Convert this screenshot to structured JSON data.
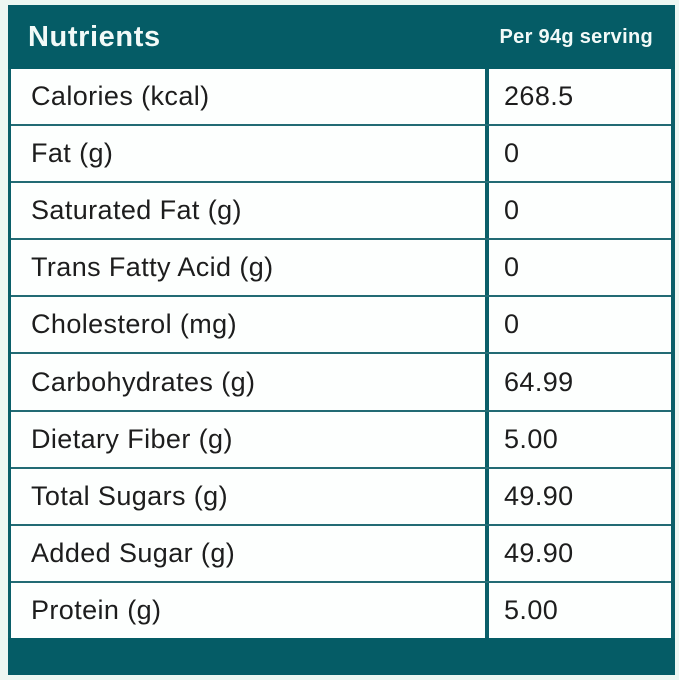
{
  "header": {
    "title": "Nutrients",
    "serving_label": "Per 94g serving"
  },
  "table": {
    "columns": [
      "Nutrients",
      "Per 94g serving"
    ],
    "rows": [
      {
        "label": "Calories (kcal)",
        "value": "268.5"
      },
      {
        "label": "Fat (g)",
        "value": "0"
      },
      {
        "label": "Saturated Fat (g)",
        "value": "0"
      },
      {
        "label": "Trans Fatty Acid (g)",
        "value": "0"
      },
      {
        "label": "Cholesterol (mg)",
        "value": "0"
      },
      {
        "label": "Carbohydrates (g)",
        "value": "64.99"
      },
      {
        "label": "Dietary Fiber (g)",
        "value": "5.00"
      },
      {
        "label": "Total Sugars (g)",
        "value": "49.90"
      },
      {
        "label": "Added Sugar (g)",
        "value": "49.90"
      },
      {
        "label": "Protein (g)",
        "value": "5.00"
      }
    ]
  },
  "colors": {
    "teal": "#055c66",
    "border_teal": "#0a5f69",
    "row_line": "#226b74",
    "row_bg": "#fdfffe",
    "page_bg": "#edf7f2",
    "text": "#1d1d1d",
    "header_text": "#f2faf8"
  }
}
